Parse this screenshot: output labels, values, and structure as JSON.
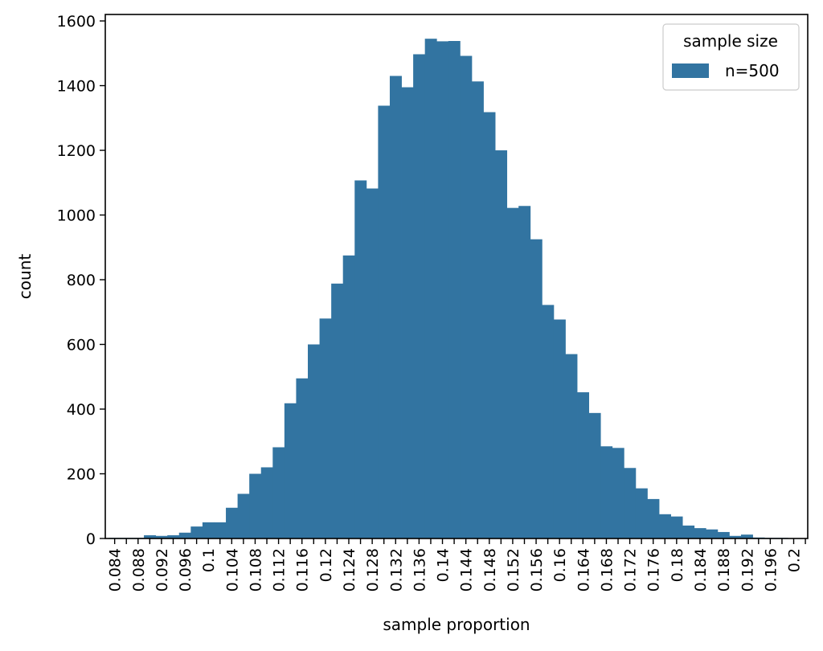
{
  "chart_data": {
    "type": "bar",
    "subtype": "histogram",
    "title": "",
    "xlabel": "sample proportion",
    "ylabel": "count",
    "xlim": [
      0.0824,
      0.2024
    ],
    "ylim": [
      0,
      1620
    ],
    "xticks": [
      0.084,
      0.086,
      0.088,
      0.09,
      0.092,
      0.094,
      0.096,
      0.098,
      0.1,
      0.102,
      0.104,
      0.106,
      0.108,
      0.11,
      0.112,
      0.114,
      0.116,
      0.118,
      0.12,
      0.122,
      0.124,
      0.126,
      0.128,
      0.13,
      0.132,
      0.134,
      0.136,
      0.138,
      0.14,
      0.142,
      0.144,
      0.146,
      0.148,
      0.15,
      0.152,
      0.154,
      0.156,
      0.158,
      0.16,
      0.162,
      0.164,
      0.166,
      0.168,
      0.17,
      0.172,
      0.174,
      0.176,
      0.178,
      0.18,
      0.182,
      0.184,
      0.186,
      0.188,
      0.19,
      0.192,
      0.194,
      0.196,
      0.198,
      0.2,
      0.202
    ],
    "xtick_labels": [
      "0.084",
      "",
      "0.088",
      "",
      "0.092",
      "",
      "0.096",
      "",
      "0.1",
      "",
      "0.104",
      "",
      "0.108",
      "",
      "0.112",
      "",
      "0.116",
      "",
      "0.12",
      "",
      "0.124",
      "",
      "0.128",
      "",
      "0.132",
      "",
      "0.136",
      "",
      "0.14",
      "",
      "0.144",
      "",
      "0.148",
      "",
      "0.152",
      "",
      "0.156",
      "",
      "0.16",
      "",
      "0.164",
      "",
      "0.168",
      "",
      "0.172",
      "",
      "0.176",
      "",
      "0.18",
      "",
      "0.184",
      "",
      "0.188",
      "",
      "0.192",
      "",
      "0.196",
      "",
      "0.2",
      ""
    ],
    "yticks": [
      0,
      200,
      400,
      600,
      800,
      1000,
      1200,
      1400,
      1600
    ],
    "ytick_labels": [
      "0",
      "200",
      "400",
      "600",
      "800",
      "1000",
      "1200",
      "1400",
      "1600"
    ],
    "bin_edges_start": 0.083,
    "bin_width": 0.002,
    "series": [
      {
        "name": "n=500",
        "color": "#3274a1",
        "values": [
          2,
          2,
          2,
          10,
          8,
          10,
          18,
          37,
          50,
          50,
          95,
          138,
          200,
          220,
          282,
          418,
          495,
          600,
          680,
          788,
          875,
          1107,
          1082,
          1338,
          1430,
          1395,
          1497,
          1545,
          1537,
          1538,
          1492,
          1413,
          1318,
          1200,
          1022,
          1028,
          925,
          722,
          677,
          570,
          452,
          388,
          285,
          280,
          218,
          155,
          122,
          75,
          68,
          40,
          32,
          28,
          20,
          8,
          12,
          3,
          2,
          2,
          1
        ]
      }
    ],
    "legend": {
      "title": "sample size",
      "position": "top-right"
    },
    "grid": false
  }
}
